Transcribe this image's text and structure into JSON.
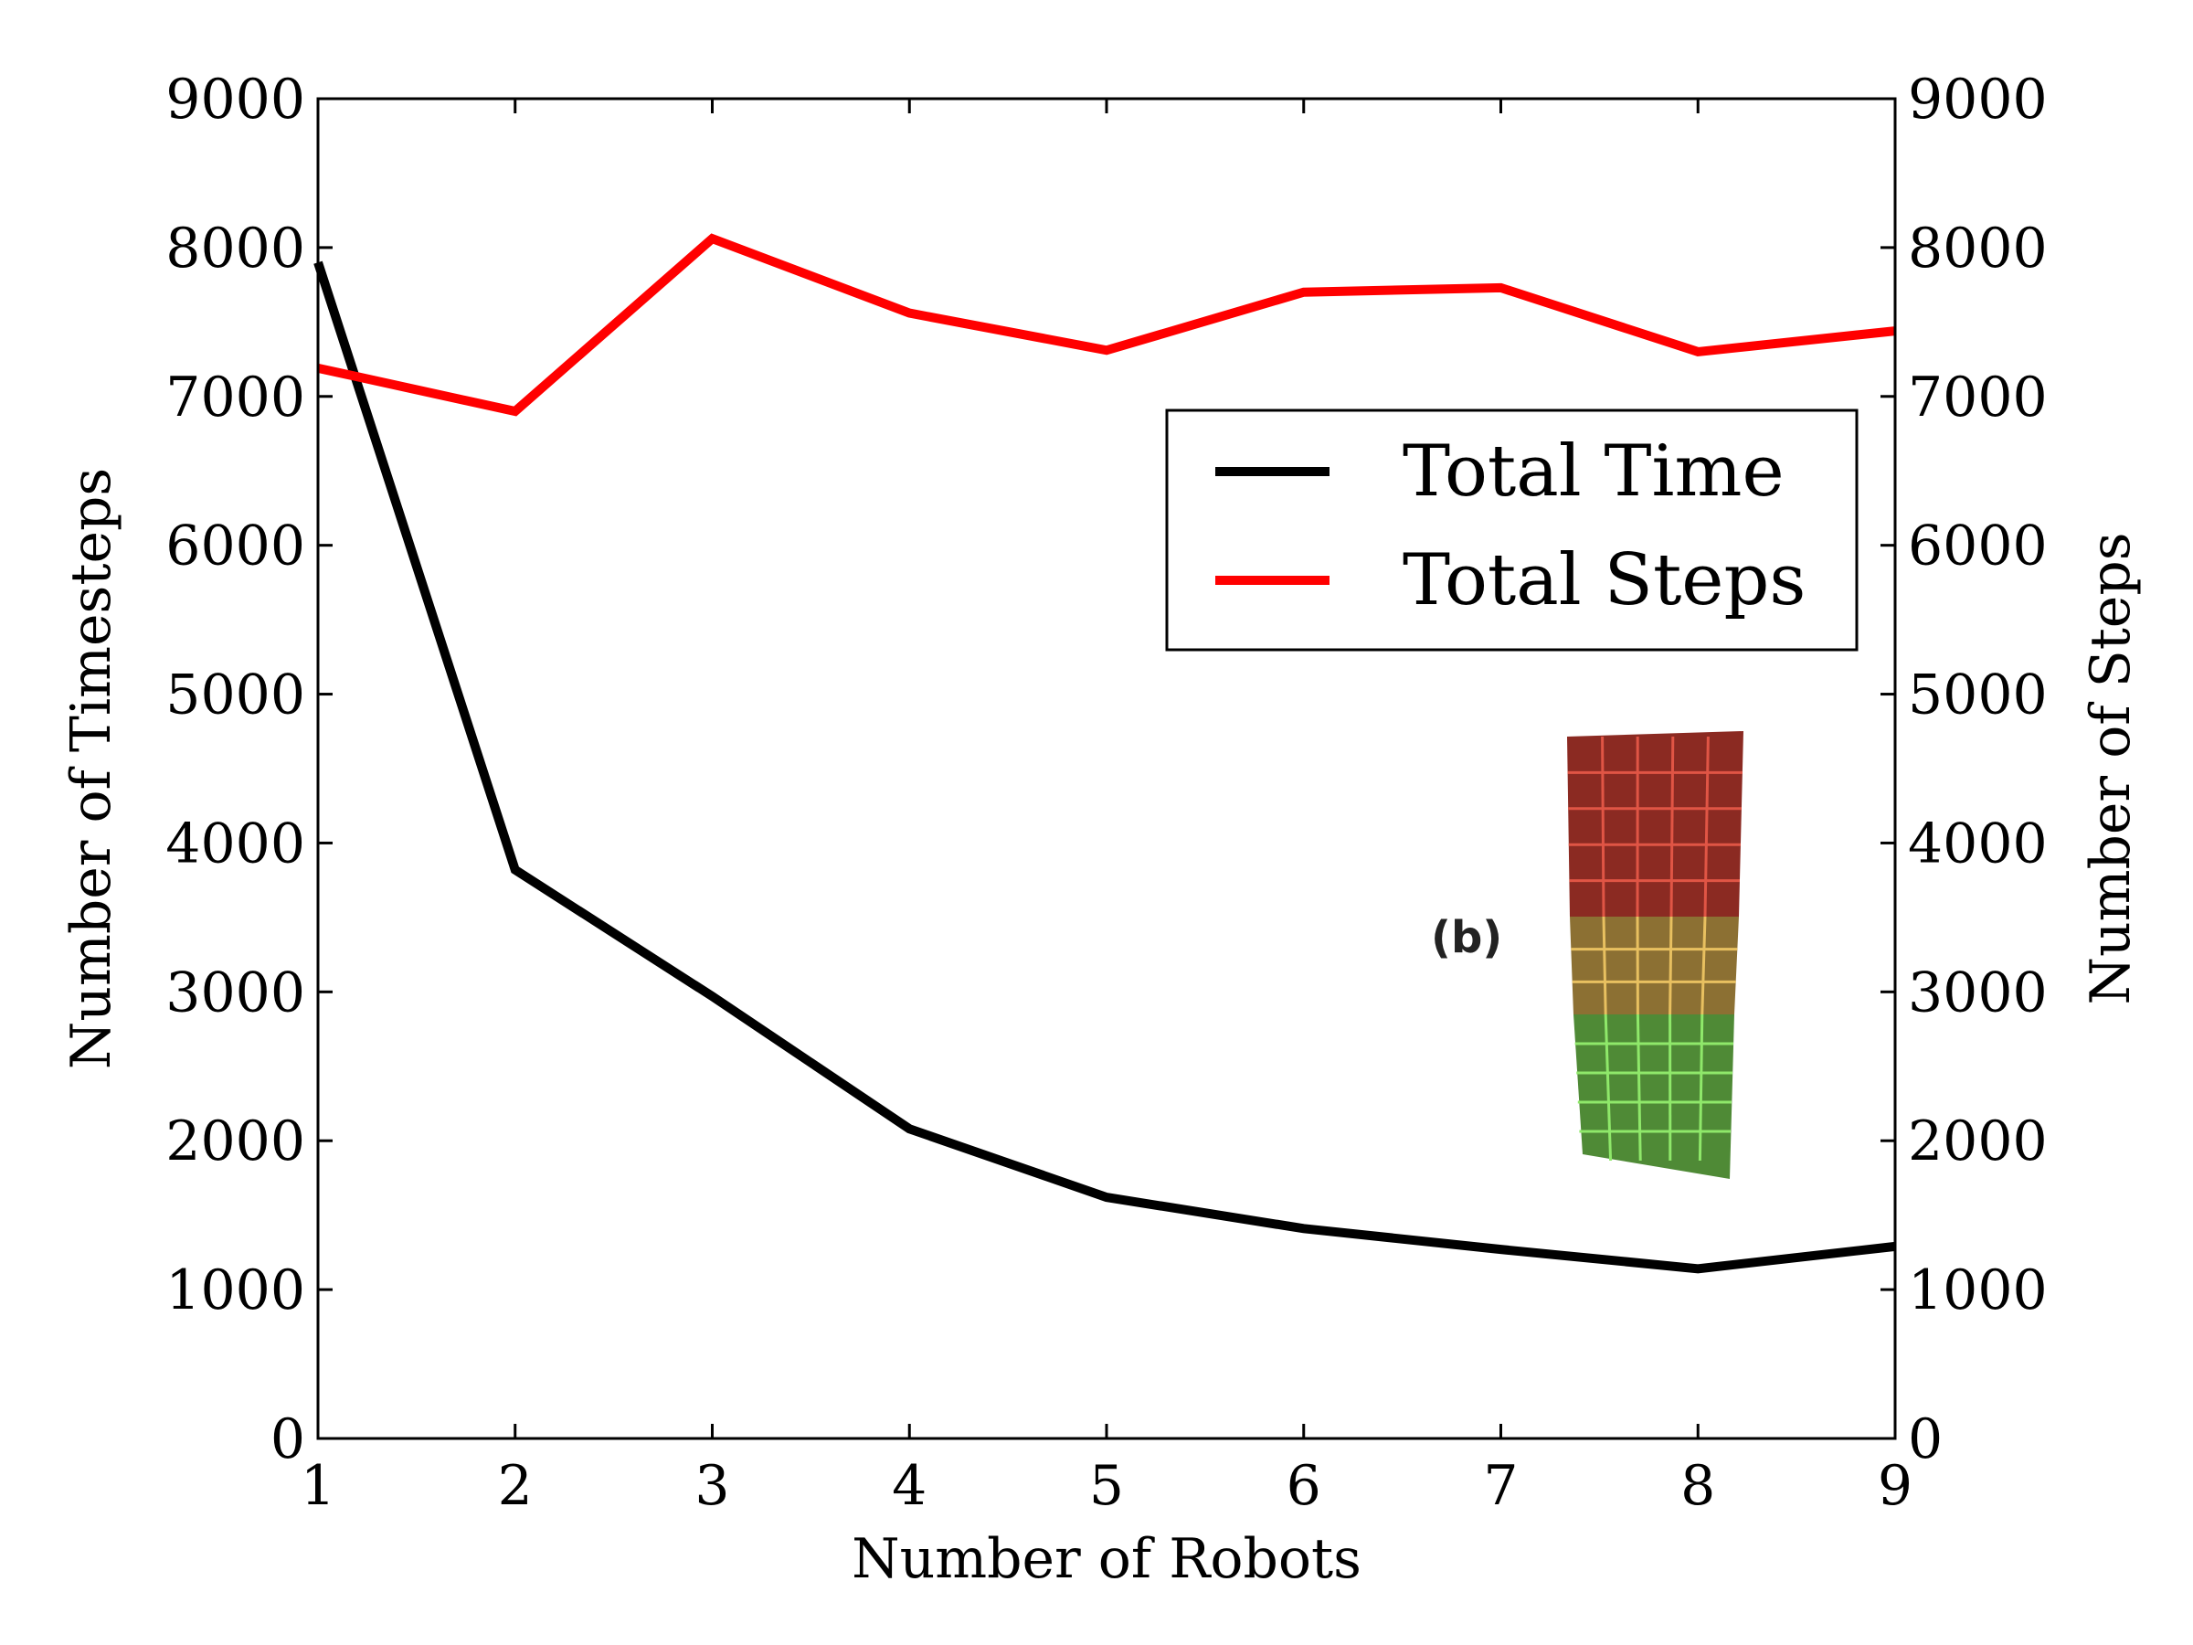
{
  "chart_data": {
    "type": "line",
    "xlabel": "Number of Robots",
    "ylabel_left": "Number of Timesteps",
    "ylabel_right": "Number of Steps",
    "xlim": [
      1,
      9
    ],
    "ylim": [
      0,
      9000
    ],
    "x_ticks": [
      "1",
      "2",
      "3",
      "4",
      "5",
      "6",
      "7",
      "8",
      "9"
    ],
    "y_ticks_left": [
      "0",
      "1000",
      "2000",
      "3000",
      "4000",
      "5000",
      "6000",
      "7000",
      "8000",
      "9000"
    ],
    "y_ticks_right": [
      "0",
      "1000",
      "2000",
      "3000",
      "4000",
      "5000",
      "6000",
      "7000",
      "8000",
      "9000"
    ],
    "grid": false,
    "legend_position": "upper-right",
    "x": [
      1,
      2,
      3,
      4,
      5,
      6,
      7,
      8,
      9
    ],
    "series": [
      {
        "name": "Total Time",
        "axis": "left",
        "color": "#000000",
        "values": [
          7900,
          3820,
          2970,
          2080,
          1620,
          1410,
          1270,
          1140,
          1290
        ]
      },
      {
        "name": "Total Steps",
        "axis": "right",
        "color": "#ff0000",
        "values": [
          7190,
          6900,
          8060,
          7560,
          7310,
          7700,
          7730,
          7300,
          7440
        ]
      }
    ],
    "inset": {
      "label": "(b)",
      "layer_colors": [
        "#8b2a22",
        "#8c7033",
        "#4f8a36"
      ],
      "grid_colors": [
        "#e05545",
        "#e8c060",
        "#8fe86a"
      ]
    }
  }
}
